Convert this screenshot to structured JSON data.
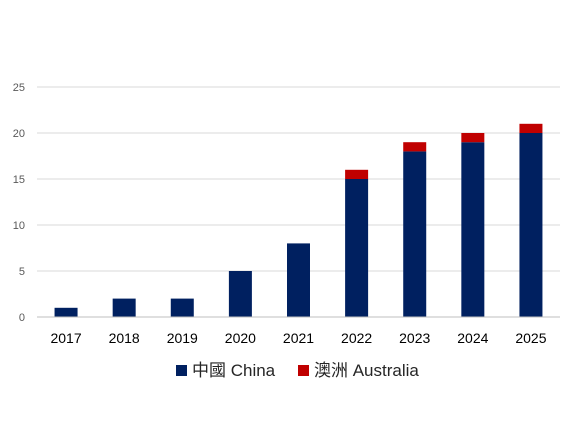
{
  "chart_data": {
    "type": "bar",
    "stacked": true,
    "categories": [
      "2017",
      "2018",
      "2019",
      "2020",
      "2021",
      "2022",
      "2023",
      "2024",
      "2025"
    ],
    "series": [
      {
        "name": "中國 China",
        "color": "#002060",
        "values": [
          1,
          2,
          2,
          5,
          8,
          15,
          18,
          19,
          20
        ]
      },
      {
        "name": "澳洲 Australia",
        "color": "#C00000",
        "values": [
          0,
          0,
          0,
          0,
          0,
          1,
          1,
          1,
          1
        ]
      }
    ],
    "y_ticks": [
      "0",
      "5",
      "10",
      "15",
      "20",
      "25"
    ],
    "ylim": [
      0,
      25
    ],
    "grid": true,
    "legend_position": "bottom",
    "title": "",
    "xlabel": "",
    "ylabel": ""
  }
}
